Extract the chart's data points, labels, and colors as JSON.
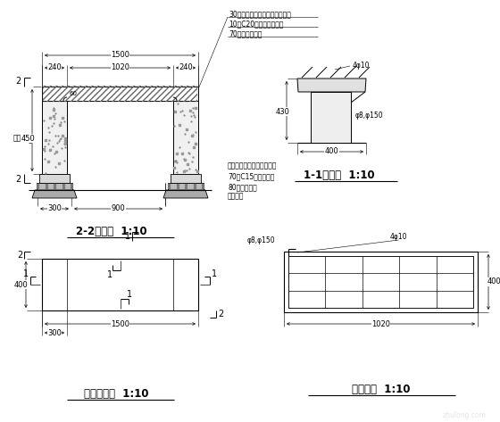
{
  "bg_color": "#ffffff",
  "title_2_2": "2-2剪面图  1:10",
  "title_1_1": "1-1剪面图  1:10",
  "title_plan": "坐凳平面图  1:10",
  "title_rebar": "凳板配筋  1:10",
  "note_top1": "30厘印花红花岗岩置板（光面）",
  "note_top2": "10厘C20水泥沙浆结合层",
  "note_top3": "70厘钉筋砜凳板",
  "note_right1": "印花红花岗岩石墩（毛面）",
  "note_right2": "70厘C15混凝土垫层",
  "note_right3": "80厘碎石垫层",
  "note_right4": "素土夸实",
  "label_jishi": "柱数",
  "dim_1500": "1500",
  "dim_240a": "240",
  "dim_1020": "1020",
  "dim_240b": "240",
  "dim_450": "450",
  "dim_60": "60",
  "dim_900": "900",
  "dim_300": "300",
  "dim_430": "430",
  "dim_400": "400",
  "dim_plan_400": "400",
  "dim_plan_300": "300",
  "dim_plan_1500": "1500",
  "dim_rebar_400": "400",
  "dim_rebar_1020": "1020",
  "rebar_top_11": "4φ10",
  "rebar_side_11": "φ8,φ150",
  "rebar_top_rb": "4φ10",
  "rebar_side_rb": "φ8,φ150",
  "font_size_note": 5.5,
  "font_size_dim": 6.0,
  "font_size_title": 8.5,
  "font_size_marker": 7.0
}
